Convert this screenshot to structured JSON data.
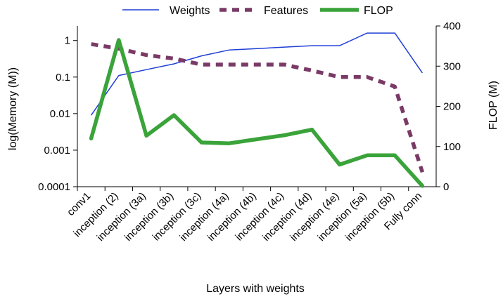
{
  "chart_data": {
    "type": "line",
    "xlabel": "Layers with weights",
    "ylabel_left": "log(Memory (M))",
    "ylabel_right": "FLOP (M)",
    "categories": [
      "conv1",
      "inception (2)",
      "inception (3a)",
      "inception (3b)",
      "inception (3c)",
      "inception (4a)",
      "inception (4b)",
      "inception (4c)",
      "inception (4d)",
      "inception (4e)",
      "inception (5a)",
      "inception (5b)",
      "Fully conn"
    ],
    "x_positions": [
      0.5,
      1.5,
      2.5,
      3.5,
      4.5,
      5.5,
      6.5,
      7.5,
      8.5,
      9.5,
      10.5,
      11.5,
      12.5
    ],
    "x_tick_positions": [
      0,
      1,
      2,
      3,
      4,
      5,
      6,
      7,
      8,
      9,
      10,
      11,
      12
    ],
    "xlim": [
      0,
      13
    ],
    "left_axis": {
      "scale": "log",
      "ylim": [
        0.0001,
        2.5
      ],
      "ticks": [
        0.0001,
        0.001,
        0.01,
        0.1,
        1
      ],
      "tick_labels": [
        "0.0001",
        "0.001",
        "0.01",
        "0.1",
        "1"
      ]
    },
    "right_axis": {
      "scale": "linear",
      "ylim": [
        0,
        400
      ],
      "ticks": [
        0,
        100,
        200,
        300,
        400
      ],
      "tick_labels": [
        "0",
        "100",
        "200",
        "300",
        "400"
      ]
    },
    "series": [
      {
        "name": "Weights",
        "axis": "left",
        "color": "#1f3fd6",
        "style": "solid-thin",
        "x": [
          0.5,
          1.5,
          2.5,
          3.5,
          4.5,
          5.5,
          6.5,
          7.5,
          8.5,
          9.5,
          10.5,
          11.5,
          12.5
        ],
        "values": [
          0.009,
          0.11,
          0.16,
          0.23,
          0.38,
          0.55,
          0.6,
          0.66,
          0.72,
          0.72,
          1.6,
          1.6,
          0.13
        ]
      },
      {
        "name": "Features",
        "axis": "left",
        "color": "#7a3a66",
        "style": "dashed-thick",
        "x": [
          0.5,
          1.5,
          2.5,
          3.5,
          4.5,
          5.5,
          6.5,
          7.5,
          8.5,
          9.5,
          10.5,
          11.5,
          12.5
        ],
        "values": [
          0.8,
          0.6,
          0.4,
          0.32,
          0.22,
          0.22,
          0.22,
          0.22,
          0.15,
          0.1,
          0.1,
          0.055,
          0.00025
        ]
      },
      {
        "name": "FLOP",
        "axis": "right",
        "color": "#3aa33a",
        "style": "solid-thick",
        "x": [
          0.5,
          1.5,
          2.5,
          3.5,
          4.5,
          5.5,
          6.5,
          7.5,
          8.5,
          9.5,
          10.5,
          11.5,
          12.5
        ],
        "values": [
          120,
          365,
          127,
          178,
          110,
          108,
          118,
          128,
          142,
          55,
          78,
          78,
          2
        ]
      }
    ],
    "legend": {
      "position": "top",
      "entries": [
        "Weights",
        "Features",
        "FLOP"
      ]
    },
    "grid": false
  }
}
